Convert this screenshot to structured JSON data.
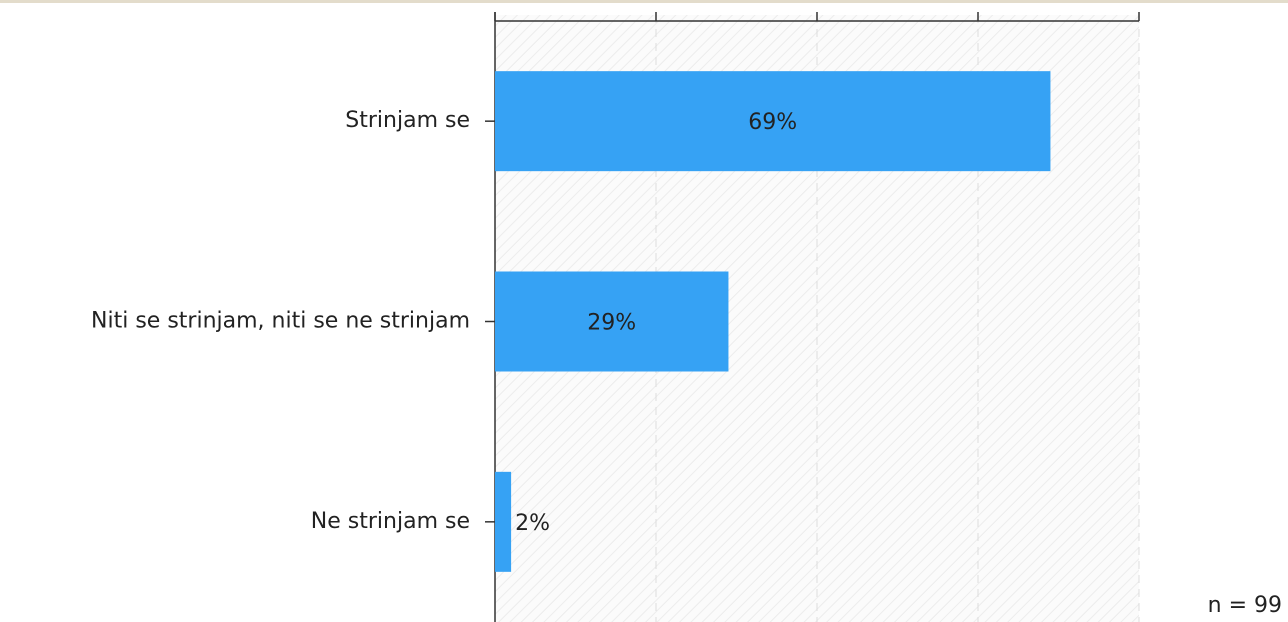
{
  "chart_data": {
    "type": "hbar",
    "categories": [
      "Strinjam se",
      "Niti se strinjam, niti se ne strinjam",
      "Ne strinjam se"
    ],
    "values": [
      69,
      29,
      2
    ],
    "value_labels": [
      "69%",
      "29%",
      "2%"
    ],
    "color": "#36a2f4",
    "xlim": [
      0,
      80
    ],
    "xticks": [
      0,
      20,
      40,
      60,
      80
    ],
    "grid": true,
    "annotation": "n = 99"
  }
}
